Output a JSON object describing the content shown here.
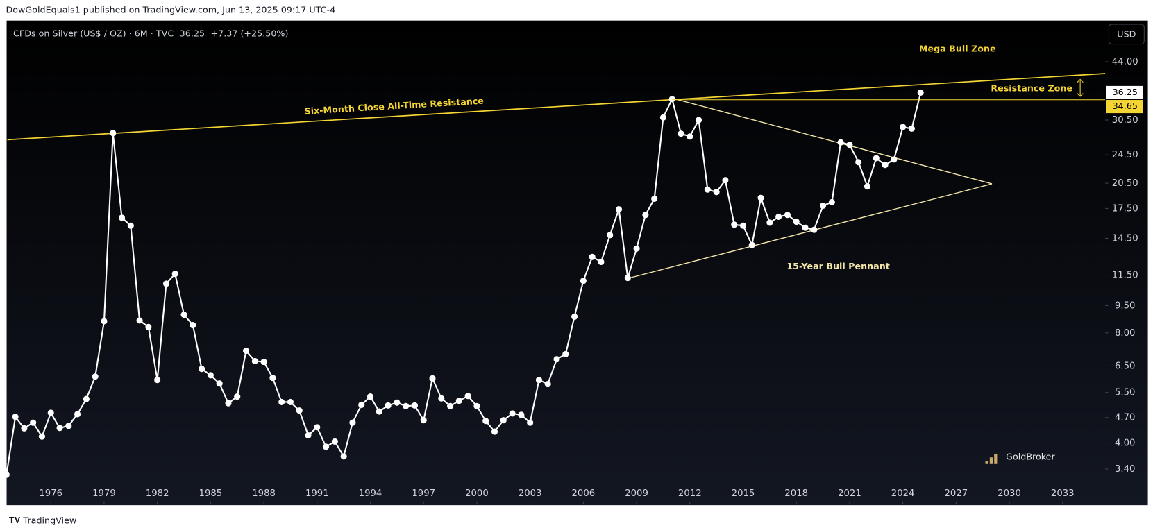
{
  "page": {
    "published": "DowGoldEquals1 published on TradingView.com, Jun 13, 2025 09:17 UTC-4",
    "footer": "TradingView",
    "currency_button": "USD",
    "watermark": "GoldBroker"
  },
  "chart_data": {
    "type": "line",
    "symbol": "CFDs on Silver (US$ / OZ) · 6M · TVC",
    "change": "+7.37 (+25.50%)",
    "annotations": {
      "zone": "Mega Bull Zone",
      "resistance_line": "Six-Month Close All-Time Resistance",
      "resistance_zone": "Resistance Zone",
      "pennant": "15-Year Bull Pennant"
    },
    "log_scale": true,
    "xlim": [
      1973.55,
      2035.4
    ],
    "ylim": [
      2.72,
      57.0
    ],
    "xticks": [
      1976,
      1979,
      1982,
      1985,
      1988,
      1991,
      1994,
      1997,
      2000,
      2003,
      2006,
      2009,
      2012,
      2015,
      2018,
      2021,
      2024,
      2027,
      2030,
      2033
    ],
    "yticks": [
      {
        "value": 44,
        "label": "44.00"
      },
      {
        "value": 30.5,
        "label": "30.50"
      },
      {
        "value": 24.5,
        "label": "24.50"
      },
      {
        "value": 20.5,
        "label": "20.50"
      },
      {
        "value": 17.5,
        "label": "17.50"
      },
      {
        "value": 14.5,
        "label": "14.50"
      },
      {
        "value": 11.5,
        "label": "11.50"
      },
      {
        "value": 9.5,
        "label": "9.50"
      },
      {
        "value": 8,
        "label": "8.00"
      },
      {
        "value": 6.5,
        "label": "6.50"
      },
      {
        "value": 5.5,
        "label": "5.50"
      },
      {
        "value": 4.7,
        "label": "4.70"
      },
      {
        "value": 4,
        "label": "4.00"
      },
      {
        "value": 3.4,
        "label": "3.40"
      }
    ],
    "resistance_level": 34.65,
    "resistance_color": "#f5d533",
    "x": [
      1973.5,
      1974,
      1974.5,
      1975,
      1975.5,
      1976,
      1976.5,
      1977,
      1977.5,
      1978,
      1978.5,
      1979,
      1979.5,
      1980,
      1980.5,
      1981,
      1981.5,
      1982,
      1982.5,
      1983,
      1983.5,
      1984,
      1984.5,
      1985,
      1985.5,
      1986,
      1986.5,
      1987,
      1987.5,
      1988,
      1988.5,
      1989,
      1989.5,
      1990,
      1990.5,
      1991,
      1991.5,
      1992,
      1992.5,
      1993,
      1993.5,
      1994,
      1994.5,
      1995,
      1995.5,
      1996,
      1996.5,
      1997,
      1997.5,
      1998,
      1998.5,
      1999,
      1999.5,
      2000,
      2000.5,
      2001,
      2001.5,
      2002,
      2002.5,
      2003,
      2003.5,
      2004,
      2004.5,
      2005,
      2005.5,
      2006,
      2006.5,
      2007,
      2007.5,
      2008,
      2008.5,
      2009,
      2009.5,
      2010,
      2010.5,
      2011,
      2011.5,
      2012,
      2012.5,
      2013,
      2013.5,
      2014,
      2014.5,
      2015,
      2015.5,
      2016,
      2016.5,
      2017,
      2017.5,
      2018,
      2018.5,
      2019,
      2019.5,
      2020,
      2020.5,
      2021,
      2021.5,
      2022,
      2022.5,
      2023,
      2023.5,
      2024,
      2024.5,
      2025
    ],
    "series": [
      {
        "name": "Silver",
        "color": "#ffffff",
        "values": [
          3.28,
          4.72,
          4.39,
          4.55,
          4.17,
          4.84,
          4.4,
          4.46,
          4.8,
          5.28,
          6.08,
          8.61,
          28.1,
          16.5,
          15.7,
          8.65,
          8.3,
          5.95,
          10.9,
          11.6,
          8.97,
          8.4,
          6.38,
          6.13,
          5.82,
          5.14,
          5.36,
          7.15,
          6.7,
          6.67,
          6.03,
          5.18,
          5.18,
          4.91,
          4.2,
          4.42,
          3.91,
          4.04,
          3.68,
          4.55,
          5.09,
          5.36,
          4.88,
          5.07,
          5.16,
          5.05,
          5.07,
          4.62,
          6.01,
          5.3,
          5.05,
          5.22,
          5.38,
          5.05,
          4.6,
          4.3,
          4.62,
          4.82,
          4.78,
          4.55,
          5.95,
          5.8,
          6.78,
          7.0,
          8.86,
          11.1,
          12.9,
          12.5,
          14.8,
          17.4,
          11.3,
          13.6,
          16.8,
          18.6,
          31.0,
          34.8,
          28.0,
          27.5,
          30.5,
          19.7,
          19.4,
          20.9,
          15.8,
          15.7,
          13.9,
          18.7,
          16.0,
          16.6,
          16.8,
          16.1,
          15.5,
          15.3,
          17.8,
          18.2,
          26.5,
          26.1,
          23.4,
          20.1,
          24.0,
          23.0,
          23.8,
          29.2,
          28.9,
          36.25
        ]
      }
    ]
  }
}
